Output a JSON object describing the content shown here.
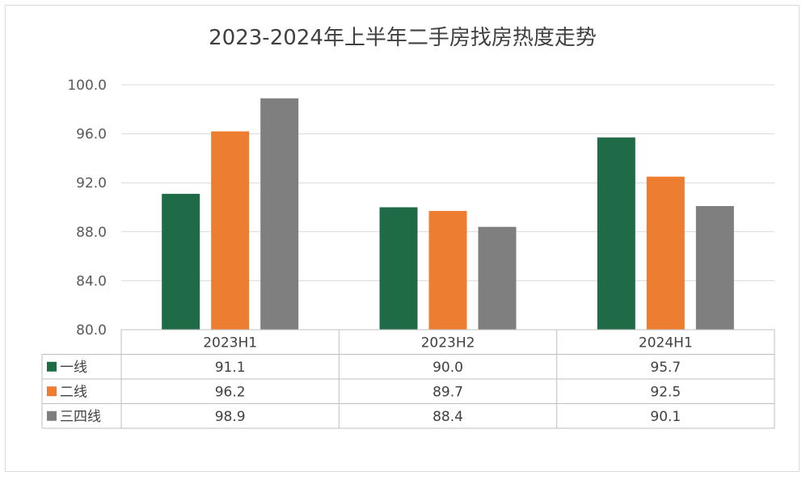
{
  "chart_data": {
    "type": "bar",
    "title": "2023-2024年上半年二手房找房热度走势",
    "xlabel": "",
    "ylabel": "",
    "ylim": [
      80,
      100
    ],
    "yticks": [
      "100.0",
      "96.0",
      "92.0",
      "88.0",
      "84.0",
      "80.0"
    ],
    "ytick_values": [
      100,
      96,
      92,
      88,
      84,
      80
    ],
    "categories": [
      "2023H1",
      "2023H2",
      "2024H1"
    ],
    "series": [
      {
        "name": "一线",
        "color": "#1f6b48",
        "values": [
          91.1,
          90.0,
          95.7
        ],
        "labels": [
          "91.1",
          "90.0",
          "95.7"
        ]
      },
      {
        "name": "二线",
        "color": "#ed7d31",
        "values": [
          96.2,
          89.7,
          92.5
        ],
        "labels": [
          "96.2",
          "89.7",
          "92.5"
        ]
      },
      {
        "name": "三四线",
        "color": "#7f7f7f",
        "values": [
          98.9,
          88.4,
          90.1
        ],
        "labels": [
          "98.9",
          "88.4",
          "90.1"
        ]
      }
    ],
    "grid": true,
    "legend": "data-table"
  }
}
